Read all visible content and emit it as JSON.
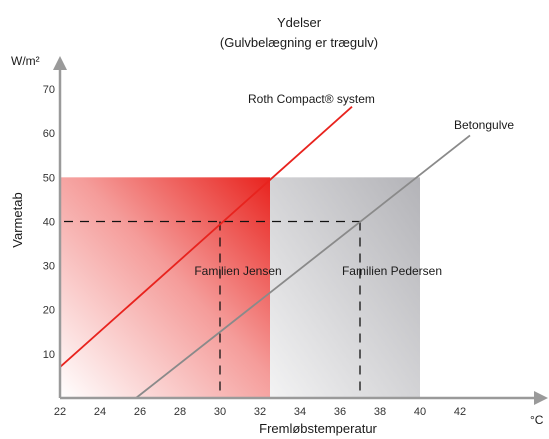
{
  "chart_data": {
    "type": "line",
    "title": "Ydelser",
    "subtitle": "(Gulvbelægning er trægulv)",
    "xlabel": "Fremløbstemperatur",
    "ylabel": "Varmetab",
    "x_unit": "°C",
    "y_unit": "W/m²",
    "xlim": [
      22,
      44
    ],
    "ylim": [
      0,
      75
    ],
    "xticks": [
      22,
      24,
      26,
      28,
      30,
      32,
      34,
      36,
      38,
      40,
      42
    ],
    "yticks": [
      10,
      20,
      30,
      40,
      50,
      60,
      70
    ],
    "grid": false,
    "series": [
      {
        "name": "Roth Compact® system",
        "x": [
          22,
          36.6
        ],
        "y": [
          7,
          66
        ],
        "color": "#e8231e"
      },
      {
        "name": "Betongulve",
        "x": [
          25.8,
          42.5
        ],
        "y": [
          0,
          59.5
        ],
        "color": "#8a8a8a"
      }
    ],
    "regions": [
      {
        "label": "Familien Jensen",
        "x": [
          22,
          32.5
        ],
        "y": [
          0,
          50
        ],
        "color": "#e8231e"
      },
      {
        "label": "Familien Pedersen",
        "x": [
          32.5,
          40
        ],
        "y": [
          0,
          50
        ],
        "color": "#9a9aa0"
      }
    ],
    "reference_lines": [
      {
        "axis": "y",
        "value": 40,
        "from": 22,
        "to": 37
      },
      {
        "axis": "x",
        "value": 30,
        "from": 0,
        "to": 40
      },
      {
        "axis": "x",
        "value": 37,
        "from": 0,
        "to": 40
      }
    ]
  }
}
